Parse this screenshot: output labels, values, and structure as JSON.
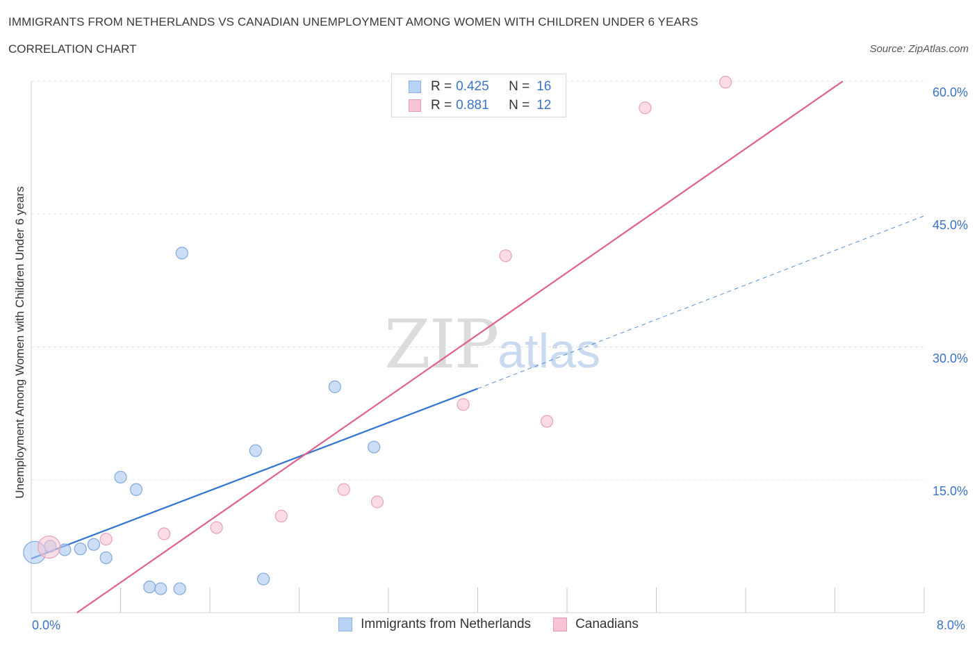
{
  "header": {
    "title": "IMMIGRANTS FROM NETHERLANDS VS CANADIAN UNEMPLOYMENT AMONG WOMEN WITH CHILDREN UNDER 6 YEARS",
    "subtitle": "CORRELATION CHART",
    "source": "Source: ZipAtlas.com"
  },
  "watermark": {
    "zip": "ZIP",
    "atlas": "atlas"
  },
  "legend": {
    "rows": [
      {
        "r_label": "R =",
        "r_value": "0.425",
        "n_label": "N =",
        "n_value": "16",
        "color": "#b8d3f5",
        "border": "#8ab0e3"
      },
      {
        "r_label": "R =",
        "r_value": "0.881",
        "n_label": "N =",
        "n_value": "12",
        "color": "#f8c4d3",
        "border": "#e89ab2"
      }
    ]
  },
  "bottom_legend": [
    {
      "label": "Immigrants from Netherlands",
      "color": "#b8d3f5",
      "border": "#8ab0e3"
    },
    {
      "label": "Canadians",
      "color": "#f8c4d3",
      "border": "#e89ab2"
    }
  ],
  "chart_data": {
    "type": "scatter",
    "title": "IMMIGRANTS FROM NETHERLANDS VS CANADIAN UNEMPLOYMENT AMONG WOMEN WITH CHILDREN UNDER 6 YEARS",
    "xlabel": "",
    "ylabel": "Unemployment Among Women with Children Under 6 years",
    "xlim": [
      0,
      8
    ],
    "ylim": [
      0,
      60
    ],
    "x_tick_labels": [
      "0.0%",
      "8.0%"
    ],
    "y_ticks": [
      15,
      30,
      45,
      60
    ],
    "y_tick_labels": [
      "15.0%",
      "30.0%",
      "45.0%",
      "60.0%"
    ],
    "grid": true,
    "series": [
      {
        "name": "Immigrants from Netherlands",
        "color": "#a9c8f0",
        "stroke": "#7fa8dc",
        "line_color": "#2f74d0",
        "trend": {
          "x0": 0.0,
          "y0": 6.1,
          "x1": 4.0,
          "y1": 25.3,
          "x_dash_end": 8.0,
          "y_dash_end": 44.8
        },
        "points": [
          {
            "x": 0.03,
            "y": 6.8,
            "big": true
          },
          {
            "x": 0.17,
            "y": 7.5
          },
          {
            "x": 0.3,
            "y": 7.1
          },
          {
            "x": 0.44,
            "y": 7.2
          },
          {
            "x": 0.56,
            "y": 7.7
          },
          {
            "x": 0.67,
            "y": 6.2
          },
          {
            "x": 0.8,
            "y": 15.3
          },
          {
            "x": 0.94,
            "y": 13.9
          },
          {
            "x": 1.06,
            "y": 2.9
          },
          {
            "x": 1.16,
            "y": 2.7
          },
          {
            "x": 1.33,
            "y": 2.7
          },
          {
            "x": 1.35,
            "y": 40.6
          },
          {
            "x": 2.01,
            "y": 18.3
          },
          {
            "x": 2.08,
            "y": 3.8
          },
          {
            "x": 2.72,
            "y": 25.5
          },
          {
            "x": 3.07,
            "y": 18.7
          }
        ]
      },
      {
        "name": "Canadians",
        "color": "#f8c4d3",
        "stroke": "#eaa0b8",
        "line_color": "#e0608a",
        "trend": {
          "x0": 0.41,
          "y0": 0.0,
          "x1": 7.27,
          "y1": 60.0
        },
        "points": [
          {
            "x": 0.16,
            "y": 7.4,
            "big": true
          },
          {
            "x": 0.67,
            "y": 8.3
          },
          {
            "x": 1.19,
            "y": 8.9
          },
          {
            "x": 1.66,
            "y": 9.6
          },
          {
            "x": 2.24,
            "y": 10.9
          },
          {
            "x": 2.8,
            "y": 13.9
          },
          {
            "x": 3.1,
            "y": 12.5
          },
          {
            "x": 3.87,
            "y": 23.5
          },
          {
            "x": 4.25,
            "y": 40.3
          },
          {
            "x": 4.62,
            "y": 21.6
          },
          {
            "x": 5.5,
            "y": 57.0
          },
          {
            "x": 6.22,
            "y": 59.9
          }
        ]
      }
    ]
  }
}
